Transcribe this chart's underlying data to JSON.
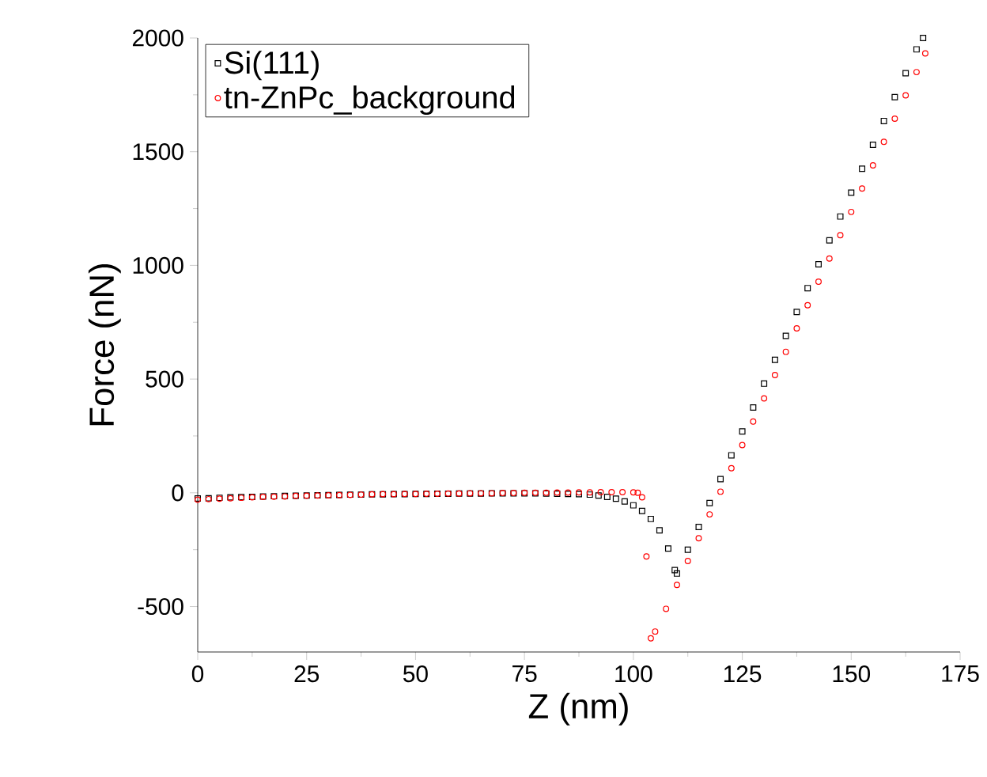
{
  "chart_data": {
    "type": "scatter",
    "xlabel": "Z (nm)",
    "ylabel": "Force (nN)",
    "xlim": [
      0,
      175
    ],
    "ylim": [
      -700,
      2000
    ],
    "xticks": [
      0,
      25,
      50,
      75,
      100,
      125,
      150,
      175
    ],
    "yticks": [
      -500,
      0,
      500,
      1000,
      1500,
      2000
    ],
    "legend": "top left",
    "series": [
      {
        "name": "Si(111)",
        "color": "#000000",
        "marker": "square",
        "x": [
          0,
          2.5,
          5,
          7.5,
          10,
          12.5,
          15,
          17.5,
          20,
          22.5,
          25,
          27.5,
          30,
          32.5,
          35,
          37.5,
          40,
          42.5,
          45,
          47.5,
          50,
          52.5,
          55,
          57.5,
          60,
          62.5,
          65,
          67.5,
          70,
          72.5,
          75,
          77.5,
          80,
          82.5,
          85,
          87.5,
          90,
          92,
          94,
          96,
          98,
          100,
          102,
          104,
          106,
          108,
          109.5,
          110,
          112.5,
          115,
          117.5,
          120,
          122.5,
          125,
          127.5,
          130,
          132.5,
          135,
          137.5,
          140,
          142.5,
          145,
          147.5,
          150,
          152.5,
          155,
          157.5,
          160,
          162.5,
          165,
          166.5
        ],
        "values": [
          -25,
          -24,
          -22,
          -20,
          -19,
          -18,
          -16,
          -15,
          -14,
          -13,
          -12,
          -11,
          -10,
          -9,
          -8,
          -8,
          -7,
          -7,
          -6,
          -6,
          -5,
          -5,
          -4,
          -4,
          -3,
          -3,
          -3,
          -2,
          -2,
          -2,
          -2,
          -2,
          -3,
          -4,
          -5,
          -6,
          -8,
          -12,
          -18,
          -26,
          -38,
          -55,
          -80,
          -115,
          -165,
          -245,
          -340,
          -355,
          -250,
          -150,
          -45,
          60,
          165,
          270,
          375,
          480,
          585,
          690,
          795,
          900,
          1005,
          1110,
          1215,
          1320,
          1425,
          1530,
          1635,
          1740,
          1845,
          1950,
          2000
        ]
      },
      {
        "name": "tn-ZnPc_background",
        "color": "#ff0000",
        "marker": "circle",
        "x": [
          0,
          2.5,
          5,
          7.5,
          10,
          12.5,
          15,
          17.5,
          20,
          22.5,
          25,
          27.5,
          30,
          32.5,
          35,
          37.5,
          40,
          42.5,
          45,
          47.5,
          50,
          52.5,
          55,
          57.5,
          60,
          62.5,
          65,
          67.5,
          70,
          72.5,
          75,
          77.5,
          80,
          82.5,
          85,
          87.5,
          90,
          92.5,
          95,
          97.5,
          100,
          101,
          102,
          103,
          104,
          105,
          107.5,
          110,
          112.5,
          115,
          117.5,
          120,
          122.5,
          125,
          127.5,
          130,
          132.5,
          135,
          137.5,
          140,
          142.5,
          145,
          147.5,
          150,
          152.5,
          155,
          157.5,
          160,
          162.5,
          165,
          167
        ],
        "values": [
          -30,
          -28,
          -26,
          -24,
          -22,
          -20,
          -18,
          -17,
          -16,
          -14,
          -13,
          -12,
          -11,
          -10,
          -9,
          -8,
          -7,
          -6,
          -6,
          -5,
          -5,
          -4,
          -4,
          -3,
          -3,
          -2,
          -2,
          -2,
          -1,
          -1,
          0,
          0,
          0,
          1,
          1,
          2,
          2,
          3,
          3,
          3,
          2,
          0,
          -20,
          -280,
          -640,
          -610,
          -510,
          -405,
          -300,
          -200,
          -95,
          5,
          108,
          210,
          313,
          415,
          518,
          620,
          723,
          825,
          928,
          1030,
          1133,
          1235,
          1338,
          1440,
          1543,
          1645,
          1748,
          1850,
          1932
        ]
      }
    ]
  }
}
